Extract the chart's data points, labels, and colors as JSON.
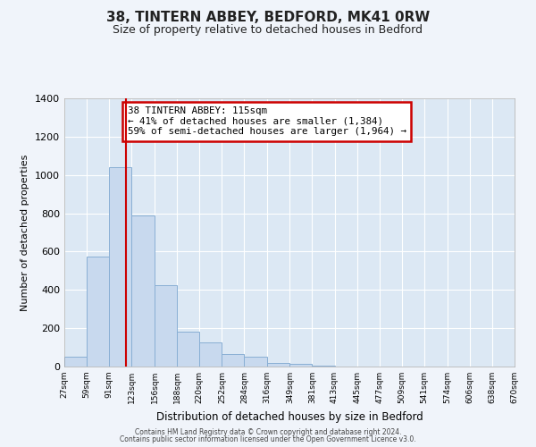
{
  "title": "38, TINTERN ABBEY, BEDFORD, MK41 0RW",
  "subtitle": "Size of property relative to detached houses in Bedford",
  "xlabel": "Distribution of detached houses by size in Bedford",
  "ylabel": "Number of detached properties",
  "bar_color": "#c8d9ee",
  "bar_edge_color": "#89afd4",
  "background_color": "#f0f4fa",
  "plot_bg_color": "#dce8f4",
  "grid_color": "#ffffff",
  "vline_x": 115,
  "vline_color": "#cc0000",
  "annotation_box_color": "#ffffff",
  "annotation_border_color": "#cc0000",
  "annotation_line1": "38 TINTERN ABBEY: 115sqm",
  "annotation_line2": "← 41% of detached houses are smaller (1,384)",
  "annotation_line3": "59% of semi-detached houses are larger (1,964) →",
  "bins": [
    27,
    59,
    91,
    123,
    156,
    188,
    220,
    252,
    284,
    316,
    349,
    381,
    413,
    445,
    477,
    509,
    541,
    574,
    606,
    638,
    670
  ],
  "counts": [
    50,
    575,
    1040,
    790,
    425,
    180,
    125,
    65,
    50,
    20,
    15,
    5,
    2,
    0,
    0,
    0,
    0,
    0,
    0,
    0
  ],
  "ylim": [
    0,
    1400
  ],
  "yticks": [
    0,
    200,
    400,
    600,
    800,
    1000,
    1200,
    1400
  ],
  "tick_labels": [
    "27sqm",
    "59sqm",
    "91sqm",
    "123sqm",
    "156sqm",
    "188sqm",
    "220sqm",
    "252sqm",
    "284sqm",
    "316sqm",
    "349sqm",
    "381sqm",
    "413sqm",
    "445sqm",
    "477sqm",
    "509sqm",
    "541sqm",
    "574sqm",
    "606sqm",
    "638sqm",
    "670sqm"
  ],
  "footnote1": "Contains HM Land Registry data © Crown copyright and database right 2024.",
  "footnote2": "Contains public sector information licensed under the Open Government Licence v3.0."
}
